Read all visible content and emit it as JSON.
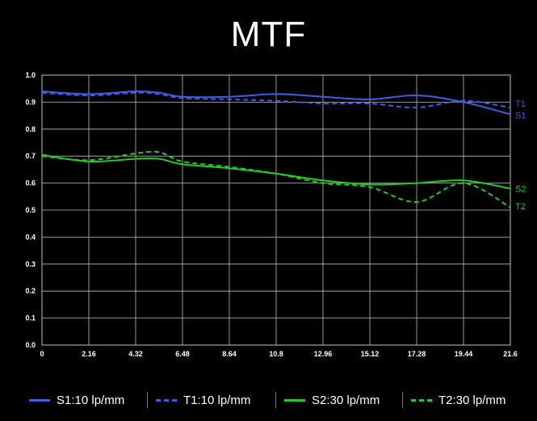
{
  "chart_data": {
    "type": "line",
    "title": "MTF",
    "xlabel": "",
    "ylabel": "",
    "xlim": [
      0,
      21.6
    ],
    "ylim": [
      0,
      1.0
    ],
    "x_ticks": [
      "0",
      "2.16",
      "4.32",
      "6.48",
      "8.64",
      "10.8",
      "12.96",
      "15.12",
      "17.28",
      "19.44",
      "21.6"
    ],
    "y_ticks": [
      "0.0",
      "0.1",
      "0.2",
      "0.3",
      "0.4",
      "0.5",
      "0.6",
      "0.7",
      "0.8",
      "0.9",
      "1.0"
    ],
    "grid": true,
    "legend_position": "bottom",
    "x": [
      0,
      2.16,
      4.32,
      5.4,
      6.48,
      8.64,
      10.8,
      12.96,
      15.12,
      17.28,
      19.44,
      21.6
    ],
    "series": [
      {
        "name": "S1:10 lp/mm",
        "end_label": "S1",
        "color": "#3b5ee8",
        "dashed": false,
        "values": [
          0.94,
          0.93,
          0.94,
          0.935,
          0.92,
          0.92,
          0.93,
          0.92,
          0.91,
          0.925,
          0.9,
          0.855
        ]
      },
      {
        "name": "T1:10 lp/mm",
        "end_label": "T1",
        "color": "#3b5ee8",
        "dashed": true,
        "values": [
          0.935,
          0.925,
          0.935,
          0.93,
          0.915,
          0.91,
          0.905,
          0.895,
          0.895,
          0.88,
          0.905,
          0.88
        ]
      },
      {
        "name": "S2:30 lp/mm",
        "end_label": "S2",
        "color": "#22cc22",
        "dashed": false,
        "values": [
          0.705,
          0.68,
          0.69,
          0.69,
          0.67,
          0.655,
          0.635,
          0.61,
          0.595,
          0.6,
          0.61,
          0.58
        ]
      },
      {
        "name": "T2:30 lp/mm",
        "end_label": "T2",
        "color": "#22cc22",
        "dashed": true,
        "values": [
          0.7,
          0.685,
          0.71,
          0.715,
          0.68,
          0.66,
          0.635,
          0.6,
          0.585,
          0.53,
          0.6,
          0.51
        ]
      }
    ]
  }
}
